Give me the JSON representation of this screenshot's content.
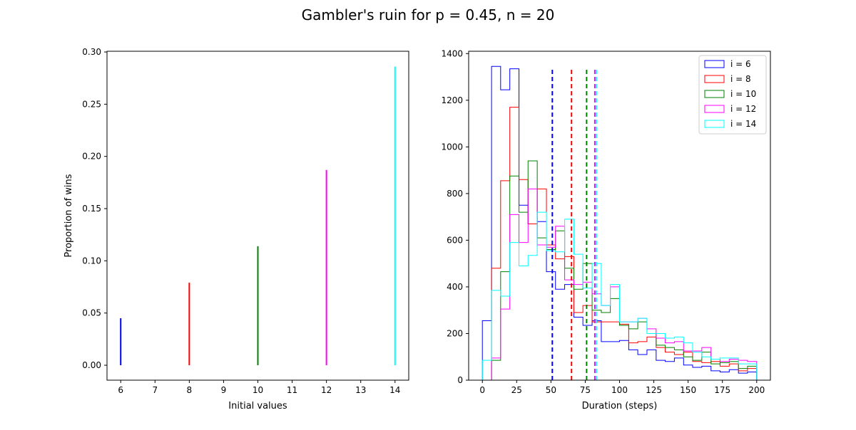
{
  "figure": {
    "title": "Gambler's ruin for p = 0.45, n = 20"
  },
  "chart_data": [
    {
      "type": "stem",
      "xlabel": "Initial values",
      "ylabel": "Proportion of wins",
      "xlim": [
        5.6,
        14.4
      ],
      "ylim": [
        -0.0143,
        0.3007
      ],
      "xticks": [
        6,
        7,
        8,
        9,
        10,
        11,
        12,
        13,
        14
      ],
      "yticks": [
        0.0,
        0.05,
        0.1,
        0.15,
        0.2,
        0.25,
        0.3
      ],
      "ytick_labels": [
        "0.00",
        "0.05",
        "0.10",
        "0.15",
        "0.20",
        "0.25",
        "0.30"
      ],
      "stems": [
        {
          "x": 6,
          "y": 0.045,
          "color": "#0000ff"
        },
        {
          "x": 8,
          "y": 0.079,
          "color": "#ff0000"
        },
        {
          "x": 10,
          "y": 0.114,
          "color": "#008000"
        },
        {
          "x": 12,
          "y": 0.187,
          "color": "#ff00ff"
        },
        {
          "x": 14,
          "y": 0.286,
          "color": "#00ffff"
        }
      ]
    },
    {
      "type": "histogram-step",
      "xlabel": "Duration (steps)",
      "ylabel": "",
      "xlim": [
        -10,
        210
      ],
      "ylim": [
        0,
        1410
      ],
      "xticks": [
        0,
        25,
        50,
        75,
        100,
        125,
        150,
        175,
        200
      ],
      "yticks": [
        0,
        200,
        400,
        600,
        800,
        1000,
        1200,
        1400
      ],
      "bin_edges": [
        0,
        6.7,
        13.3,
        20,
        26.7,
        33.3,
        40,
        46.7,
        53.3,
        60,
        66.7,
        73.3,
        80,
        86.7,
        93.3,
        100,
        106.7,
        113.3,
        120,
        126.7,
        133.3,
        140,
        146.7,
        153.3,
        160,
        166.7,
        173.3,
        180,
        186.7,
        193.3,
        200
      ],
      "legend_position": "top-right",
      "mean_line_top": 1340,
      "series": [
        {
          "name": "i = 6",
          "color": "#0000ff",
          "mean": 51,
          "counts": [
            255,
            1345,
            1245,
            1335,
            750,
            670,
            680,
            465,
            390,
            410,
            270,
            235,
            255,
            165,
            165,
            170,
            130,
            110,
            130,
            85,
            80,
            95,
            65,
            55,
            60,
            40,
            35,
            45,
            30,
            35
          ]
        },
        {
          "name": "i = 8",
          "color": "#ff0000",
          "mean": 65,
          "counts": [
            0,
            480,
            855,
            1170,
            860,
            670,
            820,
            580,
            520,
            530,
            290,
            320,
            250,
            250,
            250,
            240,
            160,
            165,
            185,
            140,
            120,
            110,
            120,
            80,
            75,
            80,
            60,
            70,
            40,
            50
          ]
        },
        {
          "name": "i = 10",
          "color": "#008000",
          "mean": 76,
          "counts": [
            0,
            85,
            465,
            875,
            720,
            940,
            610,
            560,
            640,
            480,
            390,
            500,
            300,
            290,
            350,
            235,
            220,
            250,
            200,
            150,
            140,
            130,
            100,
            85,
            120,
            70,
            75,
            80,
            50,
            60
          ]
        },
        {
          "name": "i = 12",
          "color": "#ff00ff",
          "mean": 82,
          "counts": [
            0,
            95,
            305,
            710,
            590,
            820,
            580,
            570,
            660,
            430,
            410,
            420,
            370,
            320,
            400,
            250,
            250,
            265,
            220,
            180,
            160,
            165,
            125,
            125,
            140,
            90,
            80,
            90,
            85,
            80
          ]
        },
        {
          "name": "i = 14",
          "color": "#00ffff",
          "mean": 83,
          "counts": [
            85,
            385,
            360,
            590,
            490,
            535,
            720,
            555,
            550,
            690,
            540,
            395,
            500,
            320,
            410,
            250,
            250,
            265,
            200,
            200,
            180,
            185,
            160,
            120,
            100,
            90,
            95,
            95,
            70,
            70
          ]
        }
      ]
    }
  ]
}
